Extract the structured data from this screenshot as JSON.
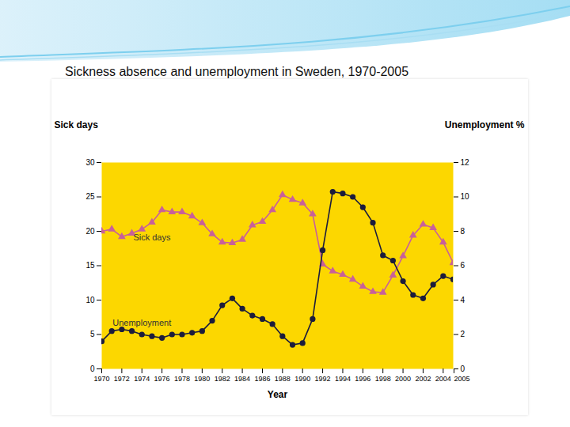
{
  "chart_data": {
    "type": "line",
    "title": "Sickness absence and unemployment in Sweden, 1970-2005",
    "xlabel": "Year",
    "ylabel": "Sick days",
    "y2label": "Unemployment %",
    "x": [
      1970,
      1971,
      1972,
      1973,
      1974,
      1975,
      1976,
      1977,
      1978,
      1979,
      1980,
      1981,
      1982,
      1983,
      1984,
      1985,
      1986,
      1987,
      1988,
      1989,
      1990,
      1991,
      1992,
      1993,
      1994,
      1995,
      1996,
      1997,
      1998,
      1999,
      2000,
      2001,
      2002,
      2003,
      2004,
      2005
    ],
    "xlim": [
      1970,
      2005
    ],
    "xticks": [
      1970,
      1972,
      1974,
      1976,
      1978,
      1980,
      1982,
      1984,
      1986,
      1988,
      1990,
      1992,
      1994,
      1996,
      1998,
      2000,
      2002,
      2004,
      2005
    ],
    "ylim": [
      0,
      30
    ],
    "yticks": [
      0,
      5,
      10,
      15,
      20,
      25,
      30
    ],
    "y2lim": [
      0,
      12
    ],
    "y2ticks": [
      0,
      2,
      4,
      6,
      8,
      10,
      12
    ],
    "grid": false,
    "series": [
      {
        "name": "Sick days",
        "color": "#c8609a",
        "marker": "triangle",
        "values": [
          20.0,
          20.3,
          19.2,
          19.7,
          20.3,
          21.3,
          23.1,
          22.8,
          22.8,
          22.2,
          21.2,
          19.6,
          18.4,
          18.3,
          18.8,
          20.9,
          21.4,
          23.1,
          25.3,
          24.6,
          24.1,
          22.5,
          15.2,
          14.2,
          13.7,
          13.0,
          12.0,
          11.2,
          11.1,
          13.6,
          16.4,
          19.4,
          21.0,
          20.5,
          18.4,
          15.4
        ]
      },
      {
        "name": "Unemployment",
        "color": "#1c1c3c",
        "marker": "circle",
        "axis": "y2",
        "values": [
          1.6,
          2.2,
          2.3,
          2.2,
          2.0,
          1.9,
          1.8,
          2.0,
          2.0,
          2.1,
          2.2,
          2.8,
          3.7,
          4.1,
          3.5,
          3.1,
          2.9,
          2.6,
          1.9,
          1.4,
          1.5,
          2.9,
          6.9,
          10.3,
          10.2,
          10.0,
          9.4,
          8.5,
          6.6,
          6.3,
          5.1,
          4.3,
          4.1,
          4.9,
          5.4,
          5.2
        ]
      }
    ]
  }
}
